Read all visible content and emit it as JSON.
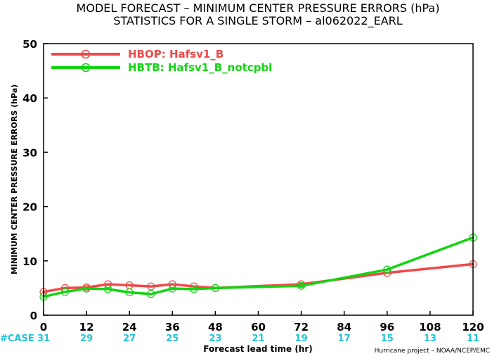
{
  "title_line1": "MODEL FORECAST – MINIMUM CENTER PRESSURE ERRORS (hPa)",
  "title_line2": "STATISTICS FOR A SINGLE STORM – al062022_EARL",
  "case_label": "#CASE",
  "credit": "Hurricane project – NOAA/NCEP/EMC",
  "colors": {
    "series1": "#f04848",
    "series2": "#12d412",
    "cases": "#22c3d6"
  },
  "chart_data": {
    "type": "line",
    "xlabel": "Forecast lead time (hr)",
    "ylabel": "MINIMUM CENTER PRESSURE ERRORS (hPa)",
    "xlim": [
      0,
      120
    ],
    "ylim": [
      0,
      50
    ],
    "x_ticks": [
      0,
      12,
      24,
      36,
      48,
      60,
      72,
      84,
      96,
      108,
      120
    ],
    "y_ticks": [
      0,
      10,
      20,
      30,
      40,
      50
    ],
    "case_counts": [
      31,
      29,
      27,
      25,
      23,
      21,
      19,
      17,
      15,
      13,
      11
    ],
    "legend_position": "top-left",
    "grid": false,
    "series": [
      {
        "name": "HBOP: Hafsv1_B",
        "color": "#f04848",
        "x": [
          0,
          6,
          12,
          18,
          24,
          30,
          36,
          42,
          48,
          72,
          96,
          120
        ],
        "y": [
          4.3,
          5.0,
          5.1,
          5.7,
          5.5,
          5.3,
          5.7,
          5.3,
          5.0,
          5.7,
          7.8,
          9.4
        ]
      },
      {
        "name": "HBTB: Hafsv1_B_notcpbl",
        "color": "#12d412",
        "x": [
          0,
          6,
          12,
          18,
          24,
          30,
          36,
          42,
          48,
          72,
          96,
          120
        ],
        "y": [
          3.4,
          4.3,
          4.9,
          4.8,
          4.2,
          3.9,
          4.9,
          4.8,
          5.0,
          5.4,
          8.4,
          14.3
        ]
      }
    ]
  }
}
